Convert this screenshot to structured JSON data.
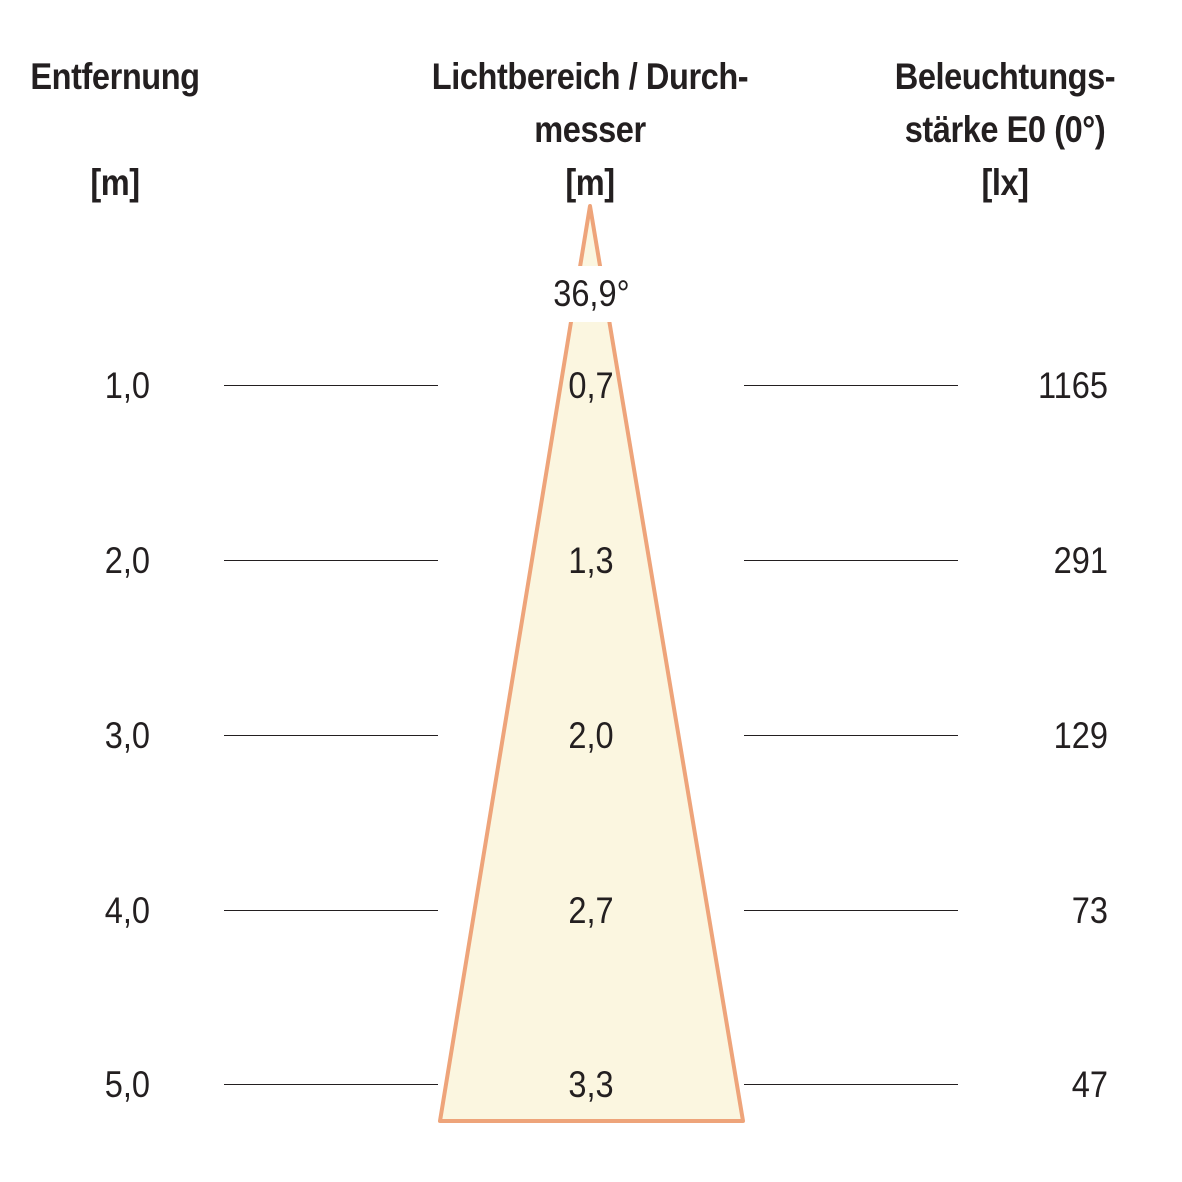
{
  "headers": {
    "distance": [
      "Entfernung",
      "",
      "[m]"
    ],
    "diameter": [
      "Lichtbereich / Durch-",
      "messer",
      "[m]"
    ],
    "illuminance": [
      "Beleuchtungs-",
      "stärke E0 (0°)",
      "[lx]"
    ]
  },
  "beam_angle": "36,9°",
  "rows": [
    {
      "distance": "1,0",
      "diameter": "0,7",
      "illuminance": "1165"
    },
    {
      "distance": "2,0",
      "diameter": "1,3",
      "illuminance": "291"
    },
    {
      "distance": "3,0",
      "diameter": "2,0",
      "illuminance": "129"
    },
    {
      "distance": "4,0",
      "diameter": "2,7",
      "illuminance": "73"
    },
    {
      "distance": "5,0",
      "diameter": "3,3",
      "illuminance": "47"
    }
  ],
  "colors": {
    "beam_fill": "#fbf6e0",
    "beam_edge": "#eea47a",
    "text": "#231f20"
  }
}
